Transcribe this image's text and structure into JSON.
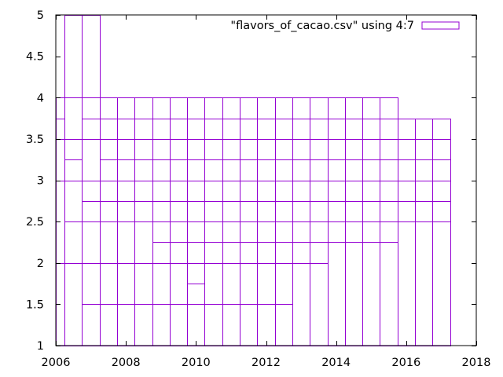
{
  "colors": {
    "series": "#9400d3",
    "axis": "#000000",
    "background": "#ffffff"
  },
  "chart_data": {
    "type": "bar",
    "style": "boxes",
    "title": "",
    "xlabel": "",
    "ylabel": "",
    "xlim": [
      2006,
      2018
    ],
    "ylim": [
      1,
      5
    ],
    "xticks": [
      "2006",
      "2008",
      "2010",
      "2012",
      "2014",
      "2016",
      "2018"
    ],
    "yticks": [
      "1",
      "1.5",
      "2",
      "2.5",
      "3",
      "3.5",
      "4",
      "4.5",
      "5"
    ],
    "grid": false,
    "legend": {
      "position": "top-right",
      "entries": [
        "\"flavors_of_cacao.csv\" using 4:7"
      ]
    },
    "box_width": 0.5,
    "series": [
      {
        "name": "\"flavors_of_cacao.csv\" using 4:7",
        "points": [
          {
            "x": 2006,
            "values": [
              2,
              3,
              3.5,
              3.75,
              4
            ]
          },
          {
            "x": 2006.5,
            "values": [
              1,
              2,
              2.5,
              3,
              3.25,
              3.5,
              4,
              5
            ]
          },
          {
            "x": 2007,
            "values": [
              1.5,
              2,
              2.5,
              2.75,
              3,
              3.5,
              3.75,
              4,
              5
            ]
          },
          {
            "x": 2007.5,
            "values": [
              1.5,
              2,
              2.5,
              2.75,
              3,
              3.25,
              3.5,
              3.75,
              4
            ]
          },
          {
            "x": 2008,
            "values": [
              1.5,
              2,
              2.5,
              2.75,
              3,
              3.25,
              3.5,
              3.75,
              4
            ]
          },
          {
            "x": 2008.5,
            "values": [
              1.5,
              2,
              2.5,
              2.75,
              3,
              3.25,
              3.5,
              3.75,
              4
            ]
          },
          {
            "x": 2009,
            "values": [
              1.5,
              2,
              2.25,
              2.5,
              2.75,
              3,
              3.25,
              3.5,
              3.75,
              4
            ]
          },
          {
            "x": 2009.5,
            "values": [
              1.5,
              2,
              2.25,
              2.5,
              2.75,
              3,
              3.25,
              3.5,
              3.75,
              4
            ]
          },
          {
            "x": 2010,
            "values": [
              1.5,
              1.75,
              2,
              2.25,
              2.5,
              2.75,
              3,
              3.25,
              3.5,
              3.75,
              4
            ]
          },
          {
            "x": 2010.5,
            "values": [
              1.5,
              2,
              2.25,
              2.5,
              2.75,
              3,
              3.25,
              3.5,
              3.75,
              4
            ]
          },
          {
            "x": 2011,
            "values": [
              1.5,
              2,
              2.25,
              2.5,
              2.75,
              3,
              3.25,
              3.5,
              3.75,
              4
            ]
          },
          {
            "x": 2011.5,
            "values": [
              1.5,
              2,
              2.25,
              2.5,
              2.75,
              3,
              3.25,
              3.5,
              3.75,
              4
            ]
          },
          {
            "x": 2012,
            "values": [
              1.5,
              2,
              2.25,
              2.5,
              2.75,
              3,
              3.25,
              3.5,
              3.75,
              4
            ]
          },
          {
            "x": 2012.5,
            "values": [
              1.5,
              2,
              2.25,
              2.5,
              2.75,
              3,
              3.25,
              3.5,
              3.75,
              4
            ]
          },
          {
            "x": 2013,
            "values": [
              2,
              2.25,
              2.5,
              2.75,
              3,
              3.25,
              3.5,
              3.75,
              4
            ]
          },
          {
            "x": 2013.5,
            "values": [
              2,
              2.25,
              2.5,
              2.75,
              3,
              3.25,
              3.5,
              3.75,
              4
            ]
          },
          {
            "x": 2014,
            "values": [
              2.25,
              2.5,
              2.75,
              3,
              3.25,
              3.5,
              3.75,
              4
            ]
          },
          {
            "x": 2014.5,
            "values": [
              2.25,
              2.5,
              2.75,
              3,
              3.25,
              3.5,
              3.75,
              4
            ]
          },
          {
            "x": 2015,
            "values": [
              2.25,
              2.5,
              2.75,
              3,
              3.25,
              3.5,
              3.75,
              4
            ]
          },
          {
            "x": 2015.5,
            "values": [
              2.25,
              2.5,
              2.75,
              3,
              3.25,
              3.5,
              3.75,
              4
            ]
          },
          {
            "x": 2016,
            "values": [
              2.5,
              2.75,
              3,
              3.25,
              3.5,
              3.75
            ]
          },
          {
            "x": 2016.5,
            "values": [
              2.5,
              2.75,
              3,
              3.25,
              3.5,
              3.75
            ]
          },
          {
            "x": 2017,
            "values": [
              2.5,
              2.75,
              3,
              3.25,
              3.5,
              3.75
            ]
          }
        ]
      }
    ]
  }
}
